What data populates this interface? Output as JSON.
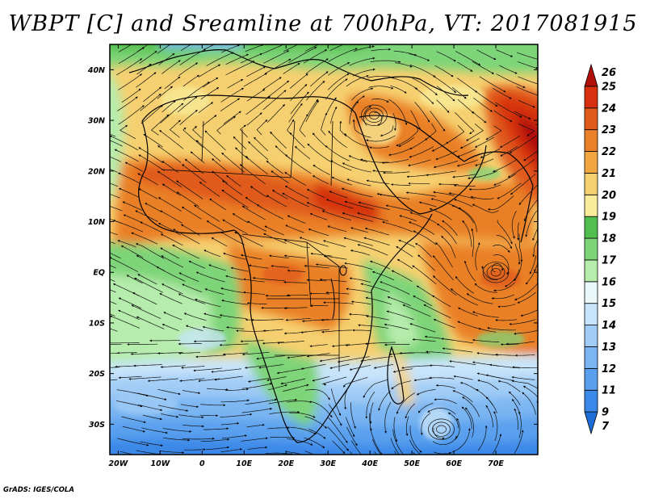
{
  "title": "WBPT [C] and Sreamline at 700hPa, VT: 2017081915",
  "credit": "GrADS: IGES/COLA",
  "map": {
    "lat_range": [
      -36,
      45
    ],
    "lon_range": [
      -22,
      80
    ],
    "lat_ticks": [
      {
        "lat": 40,
        "label": "40N"
      },
      {
        "lat": 30,
        "label": "30N"
      },
      {
        "lat": 20,
        "label": "20N"
      },
      {
        "lat": 10,
        "label": "10N"
      },
      {
        "lat": 0,
        "label": "EQ"
      },
      {
        "lat": -10,
        "label": "10S"
      },
      {
        "lat": -20,
        "label": "20S"
      },
      {
        "lat": -30,
        "label": "30S"
      }
    ],
    "lon_ticks": [
      {
        "lon": -20,
        "label": "20W"
      },
      {
        "lon": -10,
        "label": "10W"
      },
      {
        "lon": 0,
        "label": "0"
      },
      {
        "lon": 10,
        "label": "10E"
      },
      {
        "lon": 20,
        "label": "20E"
      },
      {
        "lon": 30,
        "label": "30E"
      },
      {
        "lon": 40,
        "label": "40E"
      },
      {
        "lon": 50,
        "label": "50E"
      },
      {
        "lon": 60,
        "label": "60E"
      },
      {
        "lon": 70,
        "label": "70E"
      }
    ]
  },
  "colorbar": {
    "levels": [
      "7",
      "9",
      "11",
      "12",
      "13",
      "14",
      "15",
      "16",
      "17",
      "18",
      "19",
      "20",
      "21",
      "22",
      "23",
      "24",
      "25",
      "26"
    ],
    "colors": [
      "#1e6ed8",
      "#3a88e8",
      "#5aa0ee",
      "#7cb6f2",
      "#a0ccf6",
      "#c8e4fa",
      "#eaf8fa",
      "#b6ecac",
      "#7ed478",
      "#52be4e",
      "#f8ec9a",
      "#f6d070",
      "#f2a640",
      "#ea8028",
      "#e05a1a",
      "#d63010",
      "#b00f0a"
    ]
  },
  "vortices": [
    {
      "lon": 41,
      "lat": 31,
      "label": "cyclonic circulation"
    },
    {
      "lon": 57,
      "lat": -31,
      "label": "anticyclone"
    },
    {
      "lon": 70,
      "lat": 0,
      "label": "eddy"
    }
  ]
}
